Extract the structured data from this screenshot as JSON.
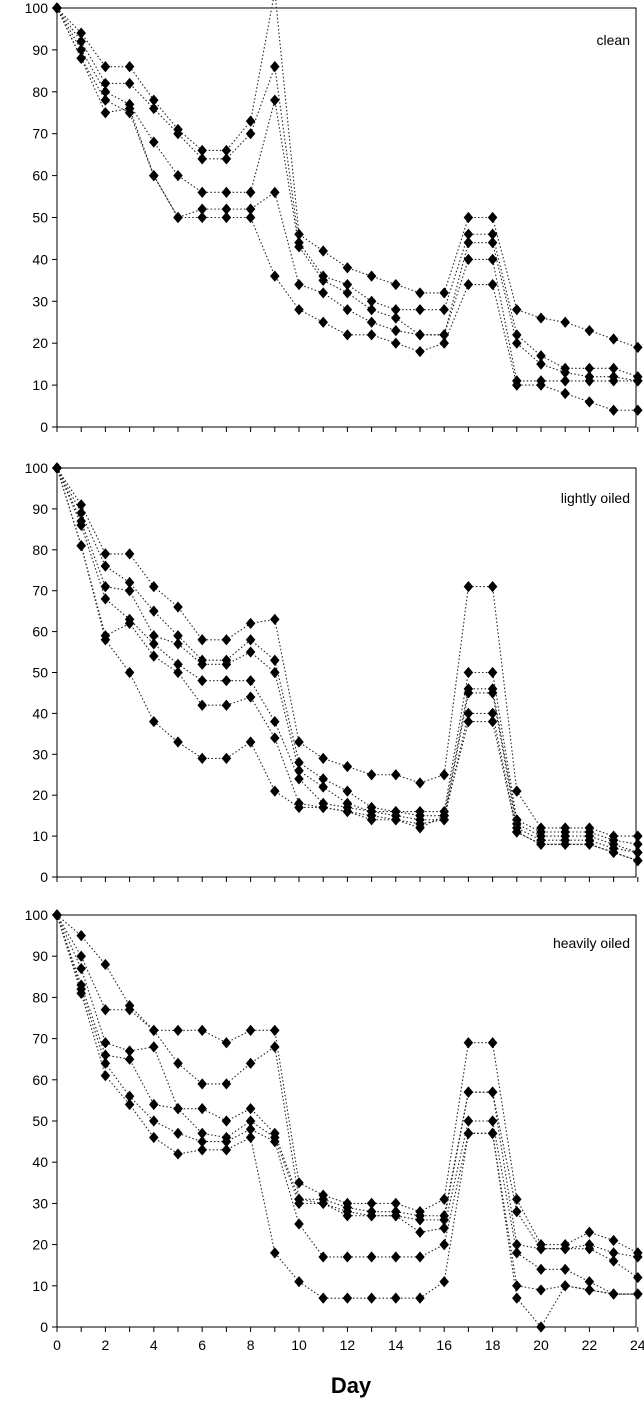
{
  "chart_data": [
    {
      "type": "line",
      "title": "clean",
      "xlabel": "",
      "ylabel": "",
      "xlim": [
        0,
        24
      ],
      "ylim": [
        0,
        100
      ],
      "x": [
        0,
        1,
        2,
        3,
        4,
        5,
        6,
        7,
        8,
        9,
        10,
        11,
        12,
        13,
        14,
        15,
        16,
        17,
        18,
        19,
        20,
        21,
        22,
        23,
        24
      ],
      "series": [
        {
          "values": [
            100,
            94,
            86,
            86,
            78,
            71,
            66,
            66,
            73,
            104,
            46,
            42,
            38,
            36,
            34,
            32,
            32,
            50,
            50,
            28,
            26,
            25,
            23,
            21,
            19
          ]
        },
        {
          "values": [
            100,
            92,
            82,
            82,
            76,
            70,
            64,
            64,
            70,
            86,
            44,
            36,
            34,
            30,
            28,
            28,
            28,
            46,
            46,
            22,
            17,
            14,
            14,
            14,
            12
          ]
        },
        {
          "values": [
            100,
            90,
            80,
            77,
            68,
            60,
            56,
            56,
            56,
            78,
            43,
            35,
            32,
            28,
            26,
            22,
            22,
            44,
            44,
            20,
            15,
            13,
            12,
            12,
            11
          ]
        },
        {
          "values": [
            100,
            88,
            78,
            75,
            60,
            50,
            52,
            52,
            52,
            56,
            34,
            32,
            28,
            25,
            23,
            22,
            22,
            40,
            40,
            11,
            11,
            11,
            11,
            11,
            11
          ]
        },
        {
          "values": [
            100,
            88,
            75,
            76,
            60,
            50,
            50,
            50,
            50,
            36,
            28,
            25,
            22,
            22,
            20,
            18,
            20,
            34,
            34,
            10,
            10,
            8,
            6,
            4,
            4
          ]
        }
      ]
    },
    {
      "type": "line",
      "title": "lightly oiled",
      "xlabel": "",
      "ylabel": "",
      "xlim": [
        0,
        24
      ],
      "ylim": [
        0,
        100
      ],
      "x": [
        0,
        1,
        2,
        3,
        4,
        5,
        6,
        7,
        8,
        9,
        10,
        11,
        12,
        13,
        14,
        15,
        16,
        17,
        18,
        19,
        20,
        21,
        22,
        23,
        24
      ],
      "series": [
        {
          "values": [
            100,
            91,
            79,
            79,
            71,
            66,
            58,
            58,
            62,
            63,
            33,
            29,
            27,
            25,
            25,
            23,
            25,
            71,
            71,
            21,
            12,
            12,
            12,
            10,
            10
          ]
        },
        {
          "values": [
            100,
            89,
            76,
            72,
            65,
            59,
            53,
            53,
            58,
            53,
            28,
            24,
            21,
            17,
            16,
            16,
            16,
            50,
            50,
            14,
            11,
            11,
            11,
            9,
            8
          ]
        },
        {
          "values": [
            100,
            87,
            71,
            70,
            59,
            57,
            52,
            52,
            55,
            50,
            26,
            22,
            18,
            16,
            16,
            15,
            15,
            46,
            46,
            13,
            10,
            10,
            10,
            8,
            6
          ]
        },
        {
          "values": [
            100,
            86,
            68,
            63,
            57,
            52,
            48,
            48,
            48,
            38,
            24,
            18,
            17,
            16,
            15,
            14,
            14,
            45,
            45,
            12,
            9,
            9,
            9,
            7,
            6
          ]
        },
        {
          "values": [
            100,
            81,
            59,
            62,
            54,
            50,
            42,
            42,
            44,
            34,
            18,
            17,
            16,
            15,
            14,
            13,
            14,
            40,
            40,
            11,
            8,
            8,
            8,
            6,
            4
          ]
        },
        {
          "values": [
            100,
            81,
            58,
            50,
            38,
            33,
            29,
            29,
            33,
            21,
            17,
            17,
            16,
            14,
            14,
            12,
            15,
            38,
            38,
            11,
            8,
            8,
            8,
            6,
            4
          ]
        }
      ]
    },
    {
      "type": "line",
      "title": "heavily oiled",
      "xlabel": "Day",
      "ylabel": "",
      "xlim": [
        0,
        24
      ],
      "ylim": [
        0,
        100
      ],
      "x": [
        0,
        1,
        2,
        3,
        4,
        5,
        6,
        7,
        8,
        9,
        10,
        11,
        12,
        13,
        14,
        15,
        16,
        17,
        18,
        19,
        20,
        21,
        22,
        23,
        24
      ],
      "series": [
        {
          "values": [
            100,
            95,
            88,
            78,
            72,
            72,
            72,
            69,
            72,
            72,
            35,
            32,
            30,
            30,
            30,
            28,
            31,
            69,
            69,
            31,
            20,
            20,
            23,
            21,
            18
          ]
        },
        {
          "values": [
            100,
            90,
            77,
            77,
            72,
            64,
            59,
            59,
            64,
            68,
            31,
            31,
            29,
            28,
            28,
            27,
            27,
            57,
            57,
            28,
            19,
            19,
            20,
            18,
            17
          ]
        },
        {
          "values": [
            100,
            87,
            69,
            67,
            68,
            53,
            53,
            50,
            53,
            47,
            31,
            30,
            28,
            27,
            27,
            26,
            26,
            57,
            57,
            20,
            19,
            19,
            19,
            16,
            12
          ]
        },
        {
          "values": [
            100,
            83,
            66,
            65,
            54,
            53,
            47,
            46,
            50,
            46,
            30,
            30,
            27,
            27,
            27,
            23,
            24,
            50,
            50,
            18,
            14,
            14,
            11,
            8,
            8
          ]
        },
        {
          "values": [
            100,
            82,
            64,
            56,
            50,
            47,
            45,
            45,
            48,
            45,
            25,
            17,
            17,
            17,
            17,
            17,
            20,
            47,
            47,
            10,
            9,
            10,
            9,
            8,
            8
          ]
        },
        {
          "values": [
            100,
            81,
            61,
            54,
            46,
            42,
            43,
            43,
            46,
            18,
            11,
            7,
            7,
            7,
            7,
            7,
            11,
            47,
            47,
            7,
            0,
            10,
            9,
            8,
            8
          ]
        }
      ]
    }
  ]
}
